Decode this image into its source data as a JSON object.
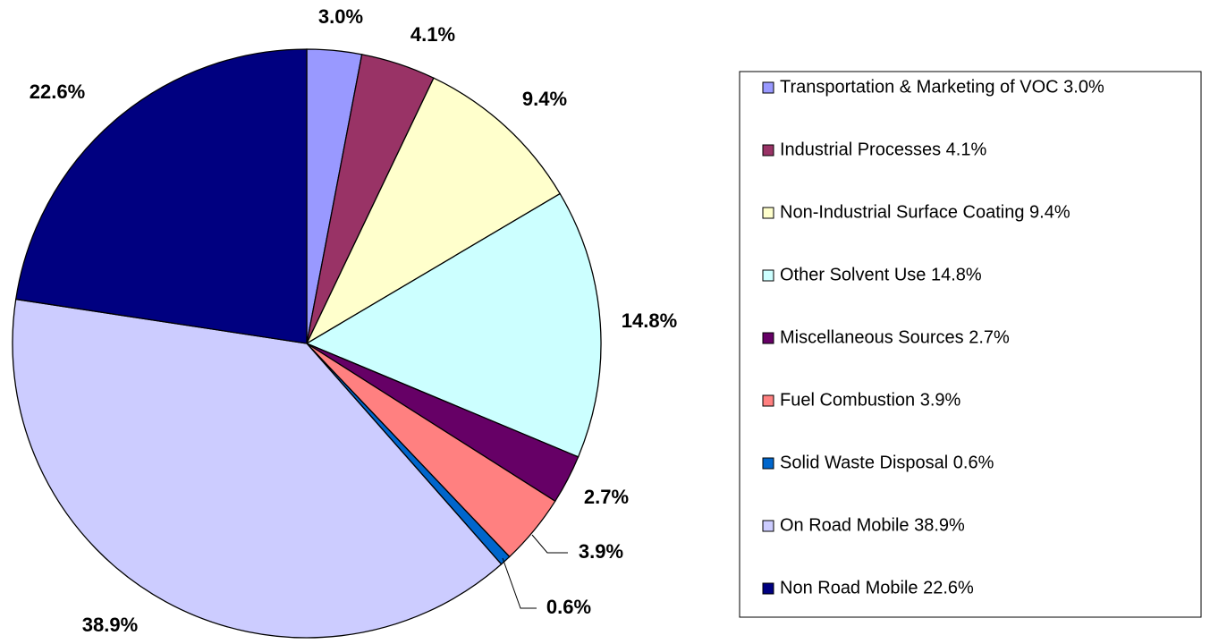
{
  "chart_data": {
    "type": "pie",
    "categories": [
      "Transportation & Marketing of VOC 3.0%",
      "Industrial Processes 4.1%",
      "Non-Industrial Surface Coating 9.4%",
      "Other Solvent Use 14.8%",
      "Miscellaneous Sources 2.7%",
      "Fuel Combustion 3.9%",
      "Solid Waste Disposal 0.6%",
      "On Road Mobile 38.9%",
      "Non Road Mobile 22.6%"
    ],
    "values": [
      3.0,
      4.1,
      9.4,
      14.8,
      2.7,
      3.9,
      0.6,
      38.9,
      22.6
    ],
    "value_labels": [
      "3.0%",
      "4.1%",
      "9.4%",
      "14.8%",
      "2.7%",
      "3.9%",
      "0.6%",
      "38.9%",
      "22.6%"
    ],
    "colors": [
      "#9999ff",
      "#993366",
      "#ffffcc",
      "#ccffff",
      "#660066",
      "#ff8080",
      "#0066cc",
      "#ccccff",
      "#000080"
    ],
    "legend": "right"
  }
}
